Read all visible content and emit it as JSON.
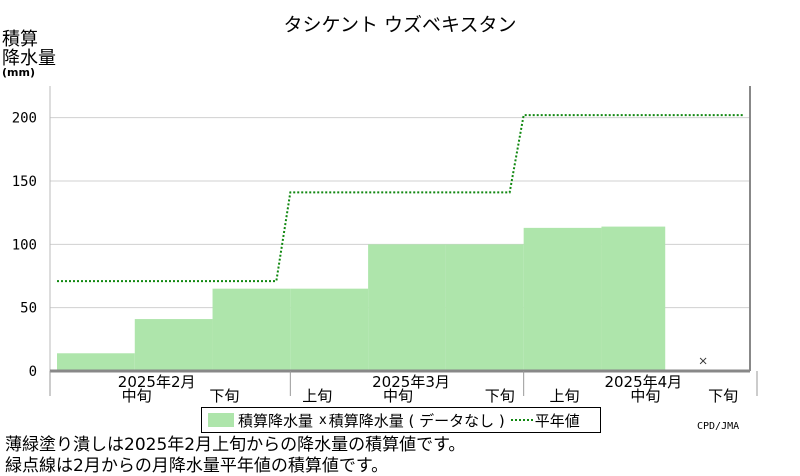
{
  "chart_data": {
    "type": "bar",
    "title": "タシケント ウズベキスタン",
    "ylabel": "積算降水量",
    "yunit": "(mm)",
    "ylim": [
      0,
      225
    ],
    "yticks": [
      0,
      50,
      100,
      150,
      200
    ],
    "periods": [
      "2月上旬",
      "2月中旬",
      "2月下旬",
      "3月上旬",
      "3月中旬",
      "3月下旬",
      "4月上旬",
      "4月中旬",
      "4月下旬"
    ],
    "x_labels": [
      {
        "label": "2025年2月"
      },
      {
        "label": "中旬"
      },
      {
        "label": "下旬"
      },
      {
        "label": "上旬"
      },
      {
        "label": "2025年3月"
      },
      {
        "label": "中旬"
      },
      {
        "label": "下旬"
      },
      {
        "label": "上旬"
      },
      {
        "label": "2025年4月"
      },
      {
        "label": "中旬"
      },
      {
        "label": "下旬"
      }
    ],
    "series": [
      {
        "name": "積算降水量",
        "color": "#aee5ab",
        "values": [
          14,
          41,
          65,
          65,
          100,
          100,
          113,
          114,
          null
        ]
      },
      {
        "name": "積算降水量 ( データなし )",
        "marker": "x",
        "color": "#333333",
        "points": [
          {
            "period_index": 8,
            "value": 4
          }
        ]
      },
      {
        "name": "平年値",
        "style": "dotted",
        "color": "#118811",
        "monthly_values": [
          71,
          141,
          202
        ]
      }
    ],
    "legend_position": "bottom"
  },
  "credit": "CPD/JMA",
  "legend": {
    "item1": "積算降水量",
    "marker2": "x",
    "item2": "積算降水量 ( データなし )",
    "item3": "平年値"
  },
  "notes": [
    "薄緑塗り潰しは2025年2月上旬からの降水量の積算値です。",
    "緑点線は2月からの月降水量平年値の積算値です。"
  ]
}
